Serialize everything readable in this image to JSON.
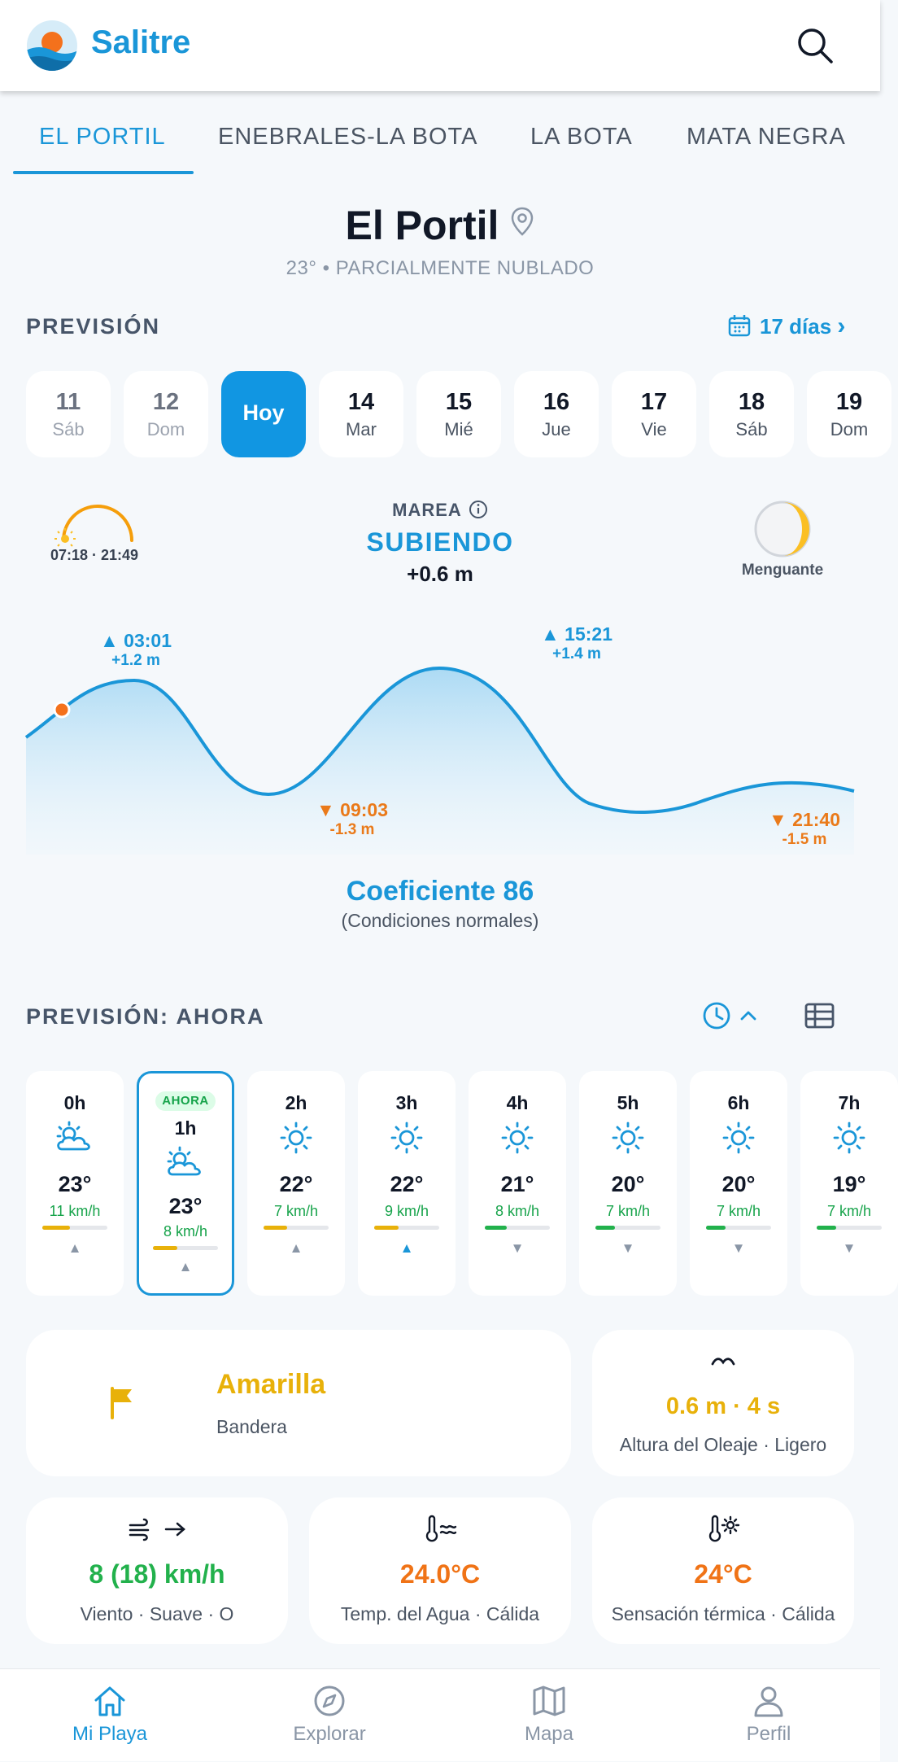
{
  "app": {
    "name": "Salitre"
  },
  "tabs": [
    {
      "label": "EL PORTIL"
    },
    {
      "label": "ENEBRALES-LA BOTA"
    },
    {
      "label": "LA BOTA"
    },
    {
      "label": "MATA NEGRA"
    }
  ],
  "location": {
    "name": "El Portil",
    "summary": "23° • PARCIALMENTE NUBLADO"
  },
  "forecast": {
    "section_label": "PREVISIÓN",
    "days_link": "17 días",
    "days_chevron": "›",
    "days": [
      {
        "num": "11",
        "name": "Sáb"
      },
      {
        "num": "12",
        "name": "Dom"
      },
      {
        "num": "Hoy",
        "name": ""
      },
      {
        "num": "14",
        "name": "Mar"
      },
      {
        "num": "15",
        "name": "Mié"
      },
      {
        "num": "16",
        "name": "Jue"
      },
      {
        "num": "17",
        "name": "Vie"
      },
      {
        "num": "18",
        "name": "Sáb"
      },
      {
        "num": "19",
        "name": "Dom"
      }
    ]
  },
  "sun": {
    "times": "07:18 · 21:49"
  },
  "tide": {
    "label": "MAREA",
    "state": "SUBIENDO",
    "delta": "+0.6 m",
    "extremes": [
      {
        "time": "▲ 03:01",
        "height": "+1.2 m"
      },
      {
        "time": "▼ 09:03",
        "height": "-1.3 m"
      },
      {
        "time": "▲ 15:21",
        "height": "+1.4 m"
      },
      {
        "time": "▼ 21:40",
        "height": "-1.5 m"
      }
    ]
  },
  "moon": {
    "phase": "Menguante"
  },
  "coefficient": {
    "title": "Coeficiente 86",
    "note": "(Condiciones normales)"
  },
  "hourly": {
    "section_label": "PREVISIÓN: AHORA",
    "now_badge": "AHORA",
    "hours": [
      {
        "hour": "0h",
        "icon": "partly-cloudy-icon",
        "temp": "23°",
        "wind": "11 km/h",
        "arrow": "▲"
      },
      {
        "hour": "1h",
        "icon": "partly-cloudy-icon",
        "temp": "23°",
        "wind": "8 km/h",
        "arrow": "▲"
      },
      {
        "hour": "2h",
        "icon": "sun-icon",
        "temp": "22°",
        "wind": "7 km/h",
        "arrow": "▲"
      },
      {
        "hour": "3h",
        "icon": "sun-icon",
        "temp": "22°",
        "wind": "9 km/h",
        "arrow": "▲"
      },
      {
        "hour": "4h",
        "icon": "sun-icon",
        "temp": "21°",
        "wind": "8 km/h",
        "arrow": "▼"
      },
      {
        "hour": "5h",
        "icon": "sun-icon",
        "temp": "20°",
        "wind": "7 km/h",
        "arrow": "▼"
      },
      {
        "hour": "6h",
        "icon": "sun-icon",
        "temp": "20°",
        "wind": "7 km/h",
        "arrow": "▼"
      },
      {
        "hour": "7h",
        "icon": "sun-icon",
        "temp": "19°",
        "wind": "7 km/h",
        "arrow": "▼"
      }
    ]
  },
  "cards": {
    "flag": {
      "value": "Amarilla",
      "label": "Bandera",
      "color": "#e8b10a"
    },
    "waves": {
      "value": "0.6 m · 4 s",
      "label": "Altura del Oleaje · Ligero",
      "color": "#e8b10a"
    },
    "wind": {
      "value": "8 (18) km/h",
      "label": "Viento · Suave · O",
      "color": "#22b14c"
    },
    "water": {
      "value": "24.0°C",
      "label": "Temp. del Agua · Cálida",
      "color": "#f07316"
    },
    "feels": {
      "value": "24°C",
      "label": "Sensación térmica · Cálida",
      "color": "#f07316"
    }
  },
  "nav": [
    {
      "label": "Mi Playa"
    },
    {
      "label": "Explorar"
    },
    {
      "label": "Mapa"
    },
    {
      "label": "Perfil"
    }
  ],
  "colors": {
    "accent": "#1a96d8",
    "low_tide": "#ea7a1a",
    "ok": "#16a34a"
  }
}
